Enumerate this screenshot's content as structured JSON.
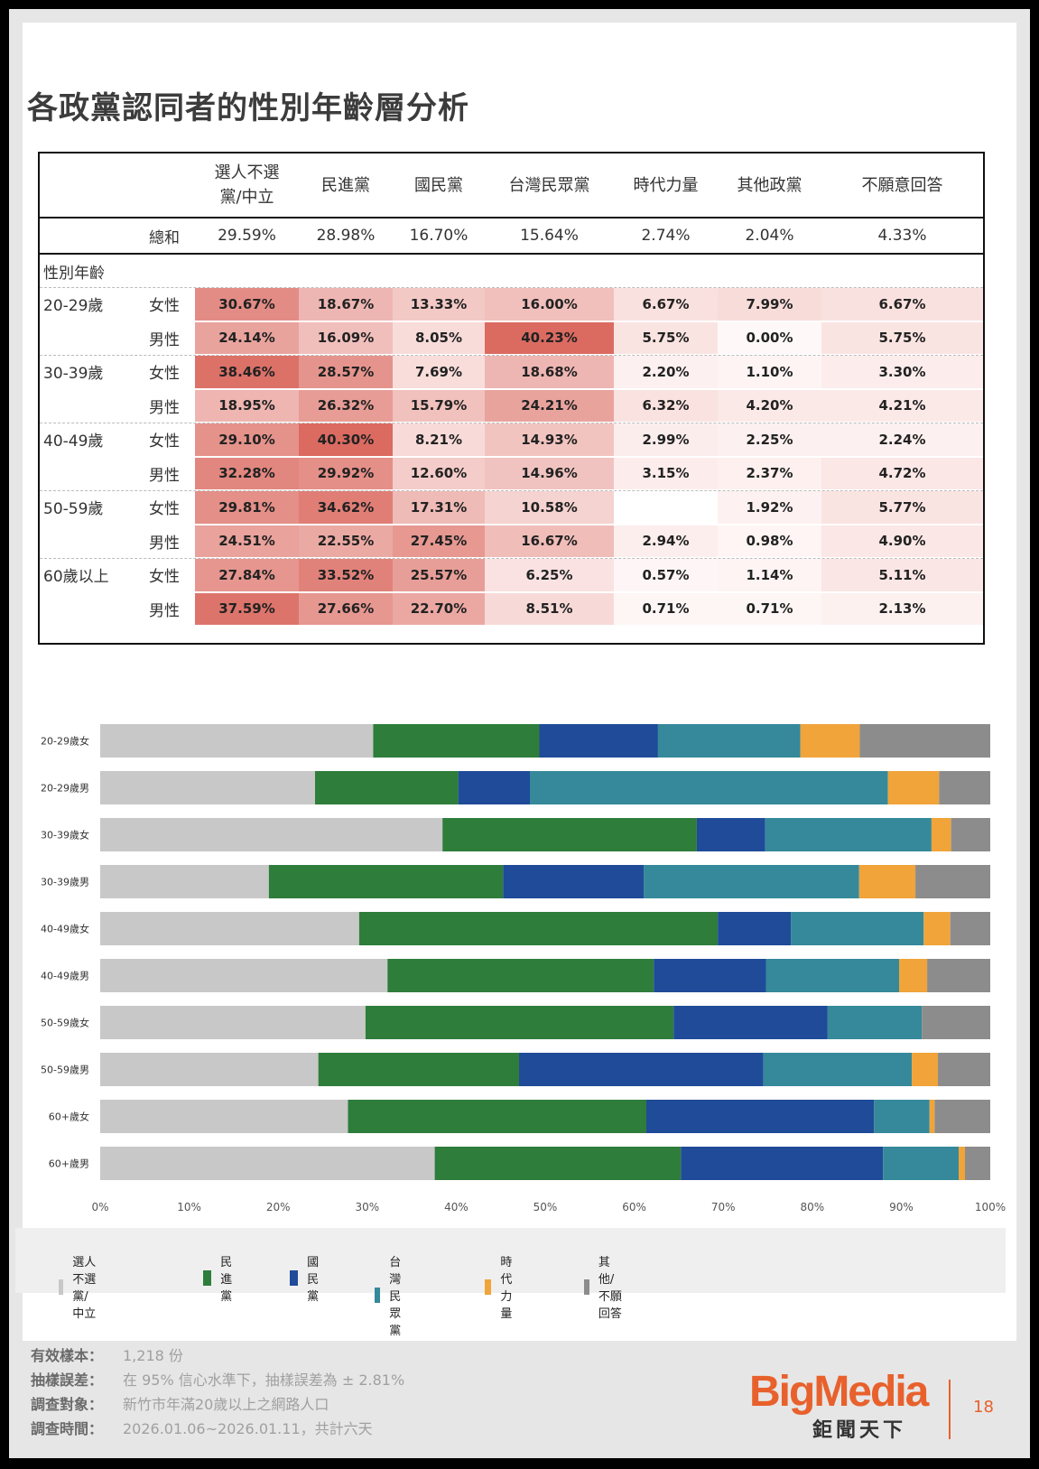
{
  "title": "各政黨認同者的性別年齡層分析",
  "table": {
    "headers": [
      "選人不選\n黨/中立",
      "民進黨",
      "國民黨",
      "台灣民眾黨",
      "時代力量",
      "其他政黨",
      "不願意回答"
    ],
    "total_label": "總和",
    "totals": [
      "29.59%",
      "28.98%",
      "16.70%",
      "15.64%",
      "2.74%",
      "2.04%",
      "4.33%"
    ],
    "section_label": "性別年齡",
    "groups": [
      {
        "age": "20-29歲",
        "rows": [
          {
            "sex": "女性",
            "values": [
              "30.67%",
              "18.67%",
              "13.33%",
              "16.00%",
              "6.67%",
              "7.99%",
              "6.67%"
            ]
          },
          {
            "sex": "男性",
            "values": [
              "24.14%",
              "16.09%",
              "8.05%",
              "40.23%",
              "5.75%",
              "0.00%",
              "5.75%"
            ]
          }
        ]
      },
      {
        "age": "30-39歲",
        "rows": [
          {
            "sex": "女性",
            "values": [
              "38.46%",
              "28.57%",
              "7.69%",
              "18.68%",
              "2.20%",
              "1.10%",
              "3.30%"
            ]
          },
          {
            "sex": "男性",
            "values": [
              "18.95%",
              "26.32%",
              "15.79%",
              "24.21%",
              "6.32%",
              "4.20%",
              "4.21%"
            ]
          }
        ]
      },
      {
        "age": "40-49歲",
        "rows": [
          {
            "sex": "女性",
            "values": [
              "29.10%",
              "40.30%",
              "8.21%",
              "14.93%",
              "2.99%",
              "2.25%",
              "2.24%"
            ]
          },
          {
            "sex": "男性",
            "values": [
              "32.28%",
              "29.92%",
              "12.60%",
              "14.96%",
              "3.15%",
              "2.37%",
              "4.72%"
            ]
          }
        ]
      },
      {
        "age": "50-59歲",
        "rows": [
          {
            "sex": "女性",
            "values": [
              "29.81%",
              "34.62%",
              "17.31%",
              "10.58%",
              "",
              "1.92%",
              "5.77%"
            ]
          },
          {
            "sex": "男性",
            "values": [
              "24.51%",
              "22.55%",
              "27.45%",
              "16.67%",
              "2.94%",
              "0.98%",
              "4.90%"
            ]
          }
        ]
      },
      {
        "age": "60歲以上",
        "rows": [
          {
            "sex": "女性",
            "values": [
              "27.84%",
              "33.52%",
              "25.57%",
              "6.25%",
              "0.57%",
              "1.14%",
              "5.11%"
            ]
          },
          {
            "sex": "男性",
            "values": [
              "37.59%",
              "27.66%",
              "22.70%",
              "8.51%",
              "0.71%",
              "0.71%",
              "2.13%"
            ]
          }
        ]
      }
    ]
  },
  "chart_data": {
    "type": "bar",
    "orientation": "horizontal",
    "stacked": "percent",
    "categories": [
      "20-29歲女",
      "20-29歲男",
      "30-39歲女",
      "30-39歲男",
      "40-49歲女",
      "40-49歲男",
      "50-59歲女",
      "50-59歲男",
      "60+歲女",
      "60+歲男"
    ],
    "series": [
      {
        "name": "選人不選黨/中立",
        "color": "#c8c8c8",
        "values": [
          30.67,
          24.14,
          38.46,
          18.95,
          29.1,
          32.28,
          29.81,
          24.51,
          27.84,
          37.59
        ]
      },
      {
        "name": "民進黨",
        "color": "#2e7d3b",
        "values": [
          18.67,
          16.09,
          28.57,
          26.32,
          40.3,
          29.92,
          34.62,
          22.55,
          33.52,
          27.66
        ]
      },
      {
        "name": "國民黨",
        "color": "#1f4b99",
        "values": [
          13.33,
          8.05,
          7.69,
          15.79,
          8.21,
          12.6,
          17.31,
          27.45,
          25.57,
          22.7
        ]
      },
      {
        "name": "台灣民眾黨",
        "color": "#35899a",
        "values": [
          16.0,
          40.23,
          18.68,
          24.21,
          14.93,
          14.96,
          10.58,
          16.67,
          6.25,
          8.51
        ]
      },
      {
        "name": "時代力量",
        "color": "#f0a43a",
        "values": [
          6.67,
          5.75,
          2.2,
          6.32,
          2.99,
          3.15,
          0,
          2.94,
          0.57,
          0.71
        ]
      },
      {
        "name": "其他/不願回答",
        "color": "#8c8c8c",
        "values": [
          14.66,
          5.75,
          4.4,
          8.41,
          4.49,
          7.09,
          7.69,
          5.88,
          6.25,
          2.84
        ]
      }
    ],
    "xticks": [
      "0%",
      "10%",
      "20%",
      "30%",
      "40%",
      "50%",
      "60%",
      "70%",
      "80%",
      "90%",
      "100%"
    ],
    "xlim": [
      0,
      100
    ],
    "legend_position": "bottom"
  },
  "footer": {
    "items": [
      {
        "label": "有效樣本：",
        "value": "1,218 份"
      },
      {
        "label": "抽樣誤差：",
        "value": "在 95% 信心水準下，抽樣誤差為 ± 2.81%"
      },
      {
        "label": "調查對象：",
        "value": "新竹市年滿20歲以上之網路人口"
      },
      {
        "label": "調查時間：",
        "value": "2026.01.06~2026.01.11，共計六天"
      }
    ]
  },
  "brand": {
    "name": "BigMedia",
    "subtitle": "鉅聞天下",
    "accent": "#e8612c"
  },
  "page_number": "18"
}
